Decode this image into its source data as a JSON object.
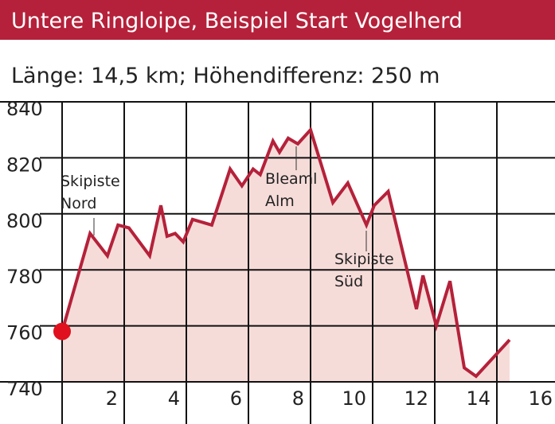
{
  "chart_data": {
    "type": "line",
    "title": "Untere Ringloipe, Beispiel Start Vogelherd",
    "subtitle": "Länge: 14,5 km; Höhendifferenz: 250 m",
    "x": [
      0,
      0.9,
      1.46,
      1.8,
      2.15,
      2.82,
      3.18,
      3.38,
      3.64,
      3.9,
      4.2,
      4.82,
      5.41,
      5.79,
      6.15,
      6.38,
      6.79,
      7.0,
      7.28,
      7.59,
      8.0,
      8.72,
      9.2,
      9.8,
      10.05,
      10.5,
      11.41,
      11.62,
      12.05,
      12.49,
      12.95,
      13.33,
      14.41
    ],
    "series": [
      {
        "color": "#b5213a",
        "fill": "#f6dcd9",
        "values": [
          758,
          793,
          785,
          796,
          795,
          785,
          803,
          792,
          793,
          790,
          798,
          796,
          816,
          810,
          816,
          814,
          826,
          822,
          827,
          825,
          830,
          804,
          811,
          796,
          803,
          808,
          766,
          778,
          760,
          776,
          745,
          742,
          755
        ]
      }
    ],
    "xlim": [
      0,
      16
    ],
    "xticks": [
      2,
      4,
      6,
      8,
      10,
      12,
      14,
      16
    ],
    "ylim": [
      740,
      840
    ],
    "yticks": [
      740,
      760,
      780,
      800,
      820,
      840
    ],
    "annotations": [
      [
        "Skipiste",
        "Nord"
      ],
      [
        "Bleaml",
        "Alm"
      ],
      [
        "Skipiste",
        "Süd"
      ]
    ]
  }
}
